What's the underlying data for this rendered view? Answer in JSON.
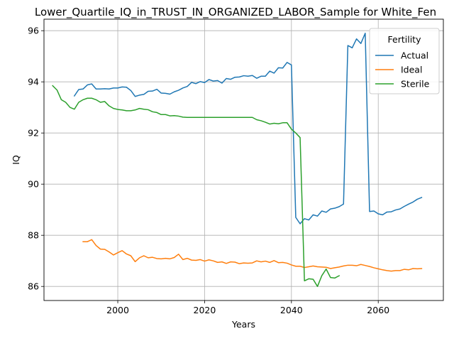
{
  "chart_data": {
    "type": "line",
    "title": "Lower_Quartile_IQ_in_TRUST_IN_ORGANIZED_LABOR_Sample for White_Fen",
    "xlabel": "Years",
    "ylabel": "IQ",
    "xlim": [
      1983,
      2075
    ],
    "ylim": [
      85.45,
      96.45
    ],
    "x_ticks": [
      2000,
      2020,
      2040,
      2060
    ],
    "y_ticks": [
      86,
      88,
      90,
      92,
      94,
      96
    ],
    "grid": true,
    "legend": {
      "title": "Fertility",
      "placement": "top-right"
    },
    "series": [
      {
        "name": "Actual",
        "color": "#1f77b4",
        "x": [
          1990,
          1991,
          1992,
          1993,
          1994,
          1995,
          1996,
          1997,
          1998,
          1999,
          2000,
          2001,
          2002,
          2003,
          2004,
          2005,
          2006,
          2007,
          2008,
          2009,
          2010,
          2011,
          2012,
          2013,
          2014,
          2015,
          2016,
          2017,
          2018,
          2019,
          2020,
          2021,
          2022,
          2023,
          2024,
          2025,
          2026,
          2027,
          2028,
          2029,
          2030,
          2031,
          2032,
          2033,
          2034,
          2035,
          2036,
          2037,
          2038,
          2039,
          2040,
          2041,
          2042,
          2043,
          2044,
          2045,
          2046,
          2047,
          2048,
          2049,
          2050,
          2051,
          2052,
          2053,
          2054,
          2055,
          2056,
          2057,
          2058,
          2059,
          2060,
          2061,
          2062,
          2063,
          2064,
          2065,
          2066,
          2067,
          2068,
          2069,
          2070
        ],
        "y": [
          93.45,
          93.7,
          93.72,
          93.88,
          93.92,
          93.72,
          93.72,
          93.73,
          93.72,
          93.76,
          93.76,
          93.8,
          93.79,
          93.66,
          93.43,
          93.48,
          93.51,
          93.63,
          93.64,
          93.71,
          93.56,
          93.55,
          93.52,
          93.61,
          93.67,
          93.76,
          93.82,
          93.98,
          93.93,
          94.01,
          93.97,
          94.09,
          94.03,
          94.05,
          93.95,
          94.13,
          94.1,
          94.18,
          94.19,
          94.24,
          94.22,
          94.25,
          94.14,
          94.22,
          94.22,
          94.42,
          94.34,
          94.55,
          94.54,
          94.76,
          94.66,
          88.7,
          88.45,
          88.65,
          88.6,
          88.8,
          88.75,
          88.95,
          88.9,
          89.03,
          89.06,
          89.12,
          89.22,
          95.42,
          95.33,
          95.68,
          95.5,
          95.9,
          88.93,
          88.95,
          88.84,
          88.8,
          88.91,
          88.92,
          88.99,
          89.03,
          89.13,
          89.22,
          89.3,
          89.41,
          89.48
        ]
      },
      {
        "name": "Ideal",
        "color": "#ff7f0e",
        "x": [
          1992,
          1993,
          1994,
          1995,
          1996,
          1997,
          1998,
          1999,
          2000,
          2001,
          2002,
          2003,
          2004,
          2005,
          2006,
          2007,
          2008,
          2009,
          2010,
          2011,
          2012,
          2013,
          2014,
          2015,
          2016,
          2017,
          2018,
          2019,
          2020,
          2021,
          2022,
          2023,
          2024,
          2025,
          2026,
          2027,
          2028,
          2029,
          2030,
          2031,
          2032,
          2033,
          2034,
          2035,
          2036,
          2037,
          2038,
          2039,
          2040,
          2041,
          2042,
          2043,
          2044,
          2045,
          2046,
          2047,
          2048,
          2049,
          2050,
          2051,
          2052,
          2053,
          2054,
          2055,
          2056,
          2057,
          2058,
          2059,
          2060,
          2061,
          2062,
          2063,
          2064,
          2065,
          2066,
          2067,
          2068,
          2069,
          2070
        ],
        "y": [
          87.75,
          87.75,
          87.83,
          87.6,
          87.46,
          87.45,
          87.35,
          87.23,
          87.32,
          87.4,
          87.27,
          87.2,
          86.97,
          87.12,
          87.2,
          87.12,
          87.14,
          87.09,
          87.08,
          87.1,
          87.08,
          87.13,
          87.26,
          87.05,
          87.1,
          87.03,
          87.02,
          87.05,
          86.99,
          87.04,
          87.0,
          86.94,
          86.96,
          86.9,
          86.96,
          86.95,
          86.89,
          86.92,
          86.91,
          86.92,
          87.0,
          86.96,
          86.99,
          86.94,
          87.01,
          86.93,
          86.94,
          86.91,
          86.84,
          86.79,
          86.79,
          86.74,
          86.77,
          86.8,
          86.77,
          86.76,
          86.75,
          86.7,
          86.73,
          86.76,
          86.8,
          86.83,
          86.83,
          86.81,
          86.86,
          86.82,
          86.78,
          86.73,
          86.69,
          86.65,
          86.62,
          86.6,
          86.62,
          86.62,
          86.67,
          86.65,
          86.7,
          86.69,
          86.7
        ]
      },
      {
        "name": "Sterile",
        "color": "#2ca02c",
        "x": [
          1985,
          1986,
          1987,
          1988,
          1989,
          1990,
          1991,
          1992,
          1993,
          1994,
          1995,
          1996,
          1997,
          1998,
          1999,
          2000,
          2001,
          2002,
          2003,
          2004,
          2005,
          2006,
          2007,
          2008,
          2009,
          2010,
          2011,
          2012,
          2013,
          2014,
          2015,
          2016,
          2017,
          2018,
          2019,
          2020,
          2021,
          2022,
          2023,
          2024,
          2025,
          2026,
          2027,
          2028,
          2029,
          2030,
          2031,
          2032,
          2033,
          2034,
          2035,
          2036,
          2037,
          2038,
          2039,
          2040,
          2041,
          2042,
          2043,
          2044,
          2045,
          2046,
          2047,
          2048,
          2049,
          2050,
          2051
        ],
        "y": [
          93.85,
          93.68,
          93.3,
          93.2,
          93.0,
          92.93,
          93.2,
          93.3,
          93.36,
          93.36,
          93.3,
          93.2,
          93.23,
          93.06,
          92.96,
          92.92,
          92.9,
          92.87,
          92.87,
          92.9,
          92.96,
          92.93,
          92.91,
          92.83,
          92.8,
          92.72,
          92.72,
          92.67,
          92.68,
          92.66,
          92.62,
          92.61,
          92.61,
          92.61,
          92.61,
          92.61,
          92.61,
          92.61,
          92.61,
          92.61,
          92.61,
          92.61,
          92.61,
          92.61,
          92.61,
          92.61,
          92.61,
          92.52,
          92.48,
          92.42,
          92.35,
          92.38,
          92.36,
          92.4,
          92.4,
          92.15,
          92.0,
          91.82,
          86.22,
          86.3,
          86.28,
          86.0,
          86.42,
          86.68,
          86.35,
          86.33,
          86.42
        ]
      }
    ]
  }
}
